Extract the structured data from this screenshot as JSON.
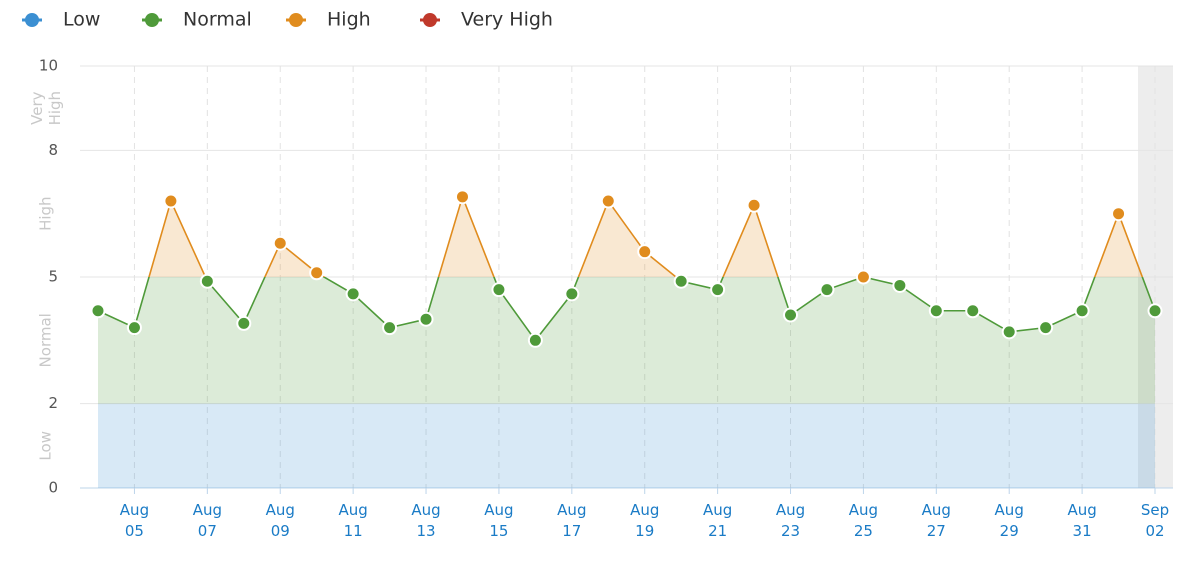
{
  "chart_data": {
    "type": "line",
    "bands": [
      {
        "name": "Low",
        "range": [
          0,
          2
        ],
        "color": "#3b8fd2"
      },
      {
        "name": "Normal",
        "range": [
          2,
          5
        ],
        "color": "#4f9a3a"
      },
      {
        "name": "High",
        "range": [
          5,
          8
        ],
        "color": "#e08c1e"
      },
      {
        "name": "Very High",
        "range": [
          8,
          10
        ],
        "color": "#c0392b"
      }
    ],
    "categories": [
      null,
      "Aug 05",
      null,
      "Aug 07",
      null,
      "Aug 09",
      null,
      "Aug 11",
      null,
      "Aug 13",
      null,
      "Aug 15",
      null,
      "Aug 17",
      null,
      "Aug 19",
      null,
      "Aug 21",
      null,
      "Aug 23",
      null,
      "Aug 25",
      null,
      "Aug 27",
      null,
      "Aug 29",
      null,
      "Aug 31",
      null,
      "Sep 02"
    ],
    "series": [
      {
        "values": [
          4.2,
          3.8,
          6.8,
          4.9,
          3.9,
          5.8,
          5.1,
          4.6,
          3.8,
          4.0,
          6.9,
          4.7,
          3.5,
          4.6,
          6.8,
          5.6,
          4.9,
          4.7,
          6.7,
          4.1,
          4.7,
          5.0,
          4.8,
          4.2,
          4.2,
          3.7,
          3.8,
          4.2,
          6.5,
          4.2
        ]
      }
    ],
    "ylim": [
      0,
      10
    ],
    "yticks": [
      0,
      2,
      5,
      8,
      10
    ],
    "grid": true
  }
}
